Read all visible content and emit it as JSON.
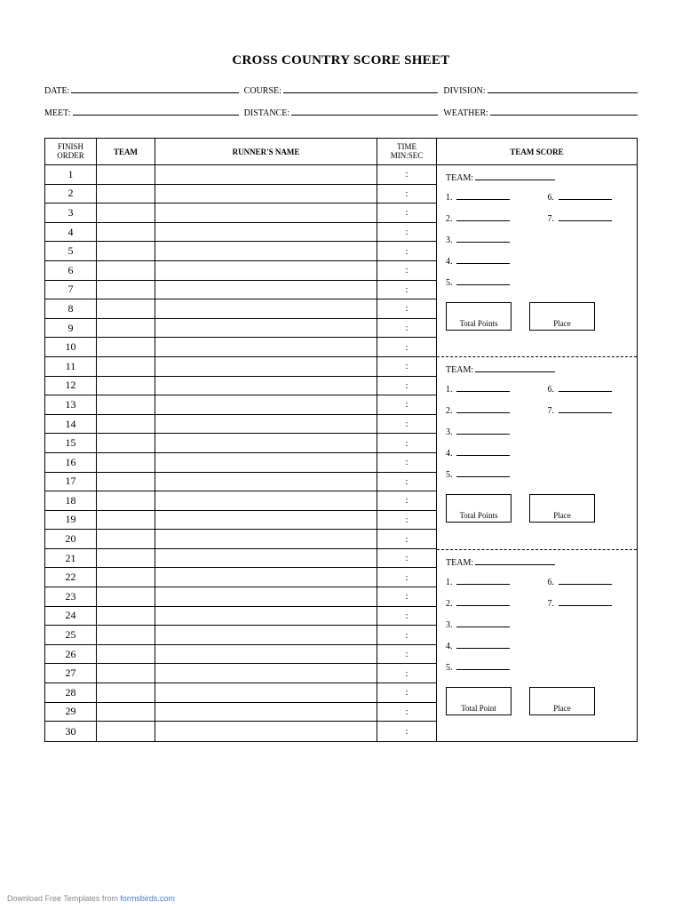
{
  "title": "CROSS COUNTRY SCORE SHEET",
  "meta": {
    "row1": [
      {
        "label": "DATE:"
      },
      {
        "label": "COURSE:"
      },
      {
        "label": "DIVISION:"
      }
    ],
    "row2": [
      {
        "label": "MEET:"
      },
      {
        "label": "DISTANCE:"
      },
      {
        "label": "WEATHER:"
      }
    ]
  },
  "columns": {
    "finish_l1": "FINISH",
    "finish_l2": "ORDER",
    "team": "TEAM",
    "runner": "RUNNER'S NAME",
    "time_l1": "TIME",
    "time_l2": "MIN:SEC",
    "team_score": "TEAM SCORE"
  },
  "rows": [
    {
      "n": "1",
      "t": ":"
    },
    {
      "n": "2",
      "t": ":"
    },
    {
      "n": "3",
      "t": ":"
    },
    {
      "n": "4",
      "t": ":"
    },
    {
      "n": "5",
      "t": ":"
    },
    {
      "n": "6",
      "t": ":"
    },
    {
      "n": "7",
      "t": ":"
    },
    {
      "n": "8",
      "t": ":"
    },
    {
      "n": "9",
      "t": ":"
    },
    {
      "n": "10",
      "t": ":"
    },
    {
      "n": "11",
      "t": ":"
    },
    {
      "n": "12",
      "t": ":"
    },
    {
      "n": "13",
      "t": ":"
    },
    {
      "n": "14",
      "t": ":"
    },
    {
      "n": "15",
      "t": ":"
    },
    {
      "n": "16",
      "t": ":"
    },
    {
      "n": "17",
      "t": ":"
    },
    {
      "n": "18",
      "t": ":"
    },
    {
      "n": "19",
      "t": ":"
    },
    {
      "n": "20",
      "t": ":"
    },
    {
      "n": "21",
      "t": ":"
    },
    {
      "n": "22",
      "t": ":"
    },
    {
      "n": "23",
      "t": ":"
    },
    {
      "n": "24",
      "t": ":"
    },
    {
      "n": "25",
      "t": ":"
    },
    {
      "n": "26",
      "t": ":"
    },
    {
      "n": "27",
      "t": ":"
    },
    {
      "n": "28",
      "t": ":"
    },
    {
      "n": "29",
      "t": ":"
    },
    {
      "n": "30",
      "t": ":"
    }
  ],
  "team_blocks": [
    {
      "team_label": "TEAM:",
      "left": [
        "1.",
        "2.",
        "3.",
        "4.",
        "5."
      ],
      "right": [
        "6.",
        "7."
      ],
      "box1": "Total Points",
      "box2": "Place"
    },
    {
      "team_label": "TEAM:",
      "left": [
        "1.",
        "2.",
        "3.",
        "4.",
        "5."
      ],
      "right": [
        "6.",
        "7."
      ],
      "box1": "Total  Points",
      "box2": "Place"
    },
    {
      "team_label": "TEAM:",
      "left": [
        "1.",
        "2.",
        "3.",
        "4.",
        "5."
      ],
      "right": [
        "6.",
        "7."
      ],
      "box1": "Total Point",
      "box2": "Place"
    }
  ],
  "footer": {
    "text": "Download Free Templates from ",
    "link": "formsbirds.com"
  },
  "colors": {
    "text": "#000000",
    "background": "#ffffff",
    "footer_text": "#888888",
    "link": "#3b7bd4"
  }
}
